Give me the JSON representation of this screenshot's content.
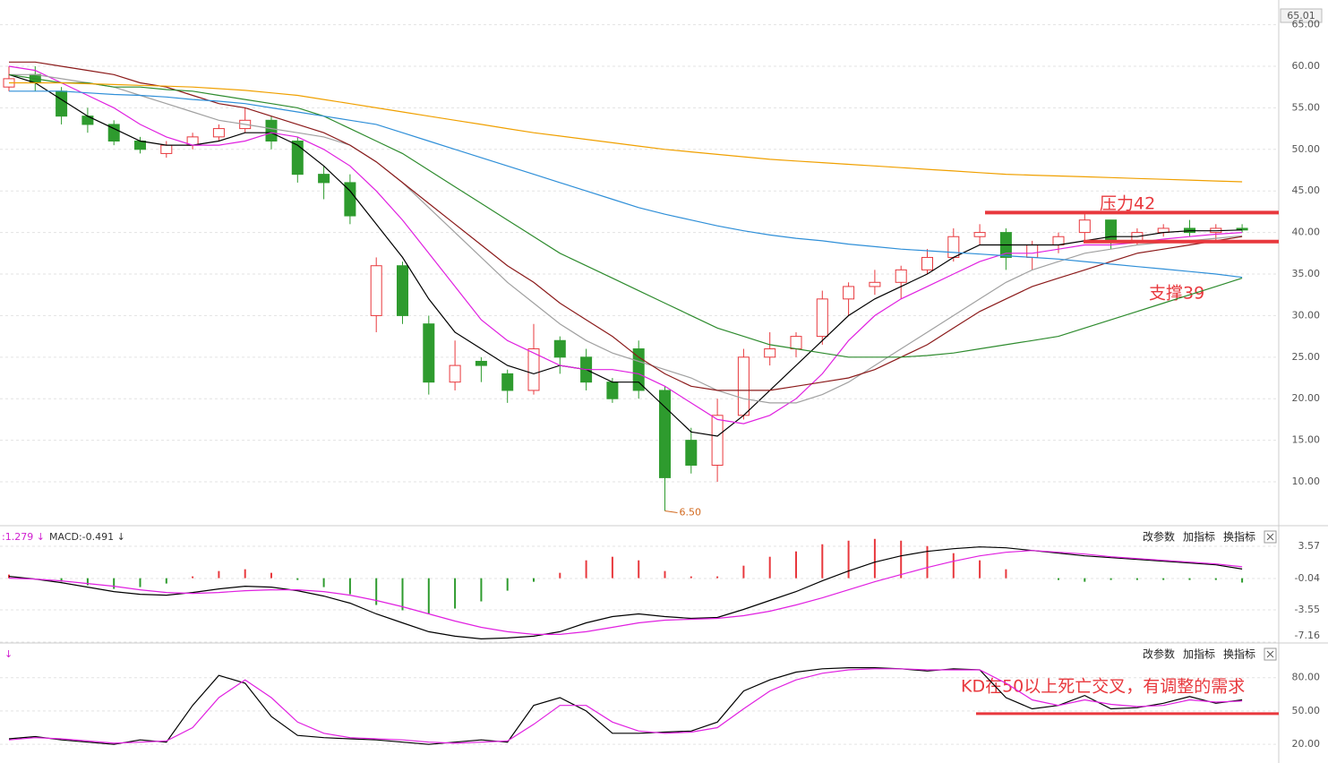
{
  "chart_data": [
    {
      "type": "candlestick",
      "open": [
        57.5,
        59,
        57,
        54,
        53,
        51,
        49.5,
        50.5,
        51.5,
        52.5,
        53.5,
        51,
        47,
        46,
        30,
        36,
        29,
        22,
        24.5,
        23,
        21,
        27,
        25,
        22,
        26,
        21,
        15,
        12,
        18,
        25,
        26,
        27.5,
        32,
        33.5,
        34,
        35.5,
        37,
        39.5,
        40,
        37,
        38.5,
        40,
        41.5,
        39,
        40,
        40.5,
        40,
        40.5
      ],
      "high": [
        60,
        60,
        57.5,
        55,
        53.5,
        51.5,
        51,
        52,
        53,
        55,
        54,
        51.5,
        48,
        47,
        37,
        36.5,
        30,
        27,
        25,
        23.5,
        29,
        27.5,
        26,
        22.5,
        27,
        21.5,
        16.5,
        20,
        26,
        28,
        28,
        33,
        34,
        35.5,
        36,
        38,
        40.5,
        41,
        40.5,
        39,
        40,
        42.5,
        41.5,
        40.5,
        41,
        41.5,
        41,
        41
      ],
      "low": [
        57,
        57,
        53,
        52,
        50.5,
        49.5,
        49,
        50,
        51,
        52,
        50,
        46,
        44,
        41,
        28,
        29,
        20.5,
        21,
        22,
        19.5,
        20.5,
        23,
        21,
        19.5,
        20,
        6.5,
        11,
        10,
        17.5,
        24,
        25,
        26.5,
        30,
        32.5,
        32,
        35,
        36.5,
        38.5,
        35.5,
        35.5,
        37.5,
        39,
        38,
        38.5,
        39.5,
        39.5,
        39,
        40
      ],
      "close": [
        58.5,
        58,
        54,
        53,
        51,
        50,
        50.5,
        51.5,
        52.5,
        53.5,
        51,
        47,
        46,
        42,
        36,
        30,
        22,
        24,
        24,
        21,
        26,
        25,
        22,
        20,
        21,
        10.5,
        12,
        18,
        25,
        26,
        27.5,
        32,
        33.5,
        34,
        35.5,
        37,
        39.5,
        40,
        37,
        38.5,
        39.5,
        41.5,
        39,
        40,
        40.5,
        40,
        40.5,
        40.3
      ],
      "up_color": "#e8383d",
      "down_color": "#2e9b2e",
      "series": [
        {
          "color": "#000000",
          "values": [
            59,
            58,
            56,
            54,
            52.5,
            51,
            50.5,
            50.5,
            51,
            52,
            52,
            50.5,
            48,
            45,
            41,
            37,
            32,
            28,
            26,
            24,
            23,
            24,
            23.5,
            22,
            22,
            19,
            16,
            15.5,
            18,
            21,
            24,
            27,
            30,
            32,
            33.5,
            35,
            37,
            38.5,
            38.5,
            38.5,
            38.5,
            39,
            39.5,
            39.5,
            40,
            40.2,
            40.2,
            40.3
          ]
        },
        {
          "color": "#e020e0",
          "values": [
            60,
            59.5,
            58,
            56.5,
            55,
            53,
            51.5,
            50.5,
            50.5,
            51,
            52,
            51.5,
            50,
            48,
            45,
            41.5,
            37.5,
            33.5,
            29.5,
            27,
            25.5,
            24,
            23.5,
            23.5,
            23,
            21.5,
            19.5,
            17.5,
            17,
            18,
            20,
            23,
            27,
            30,
            32,
            33.5,
            35,
            36.5,
            37.5,
            37.5,
            38,
            38.5,
            38.5,
            38.8,
            39.2,
            39.5,
            39.8,
            40
          ]
        },
        {
          "color": "#a0a0a0",
          "values": [
            59,
            59,
            58.5,
            58,
            57.5,
            56.5,
            55.5,
            54.5,
            53.5,
            53,
            52.5,
            52,
            51.5,
            50.5,
            48.5,
            46,
            43,
            40,
            37,
            34,
            31.5,
            29,
            27,
            25.5,
            24.5,
            23.5,
            22.5,
            21,
            20,
            19.5,
            19.5,
            20.5,
            22,
            24,
            26,
            28,
            30,
            32,
            34,
            35.5,
            36.5,
            37.5,
            38,
            38.5,
            38.8,
            39,
            39.3,
            39.6
          ]
        },
        {
          "color": "#8b1a1a",
          "values": [
            60.5,
            60.5,
            60,
            59.5,
            59,
            58,
            57.5,
            56.5,
            55.5,
            55,
            54,
            53,
            52,
            50.5,
            48.5,
            46,
            43.5,
            41,
            38.5,
            36,
            34,
            31.5,
            29.5,
            27.5,
            25,
            23,
            21.5,
            21,
            21,
            21,
            21.5,
            22,
            22.5,
            23.5,
            25,
            26.5,
            28.5,
            30.5,
            32,
            33.5,
            34.5,
            35.5,
            36.5,
            37.5,
            38,
            38.5,
            39,
            39.5
          ]
        },
        {
          "color": "#2e8b2e",
          "values": [
            59,
            58.5,
            58,
            58,
            57.5,
            57.5,
            57.2,
            57,
            56.5,
            56,
            55.5,
            55,
            54,
            52.5,
            51,
            49.5,
            47.5,
            45.5,
            43.5,
            41.5,
            39.5,
            37.5,
            36,
            34.5,
            33,
            31.5,
            30,
            28.5,
            27.5,
            26.5,
            26,
            25.5,
            25,
            25,
            25,
            25.2,
            25.5,
            26,
            26.5,
            27,
            27.5,
            28.5,
            29.5,
            30.5,
            31.5,
            32.5,
            33.5,
            34.5
          ]
        },
        {
          "color": "#2f8fd8",
          "values": [
            57,
            57,
            57,
            56.8,
            56.6,
            56.5,
            56.3,
            56,
            55.8,
            55.5,
            55,
            54.5,
            54,
            53.5,
            53,
            52,
            51,
            50,
            49,
            48,
            47,
            46,
            45,
            44,
            43,
            42.2,
            41.5,
            40.8,
            40.2,
            39.7,
            39.3,
            39,
            38.6,
            38.3,
            38,
            37.8,
            37.6,
            37.4,
            37.2,
            37,
            36.8,
            36.5,
            36.2,
            35.9,
            35.6,
            35.3,
            35,
            34.6
          ]
        },
        {
          "color": "#f0a000",
          "values": [
            58,
            58,
            58,
            57.9,
            57.8,
            57.7,
            57.6,
            57.5,
            57.3,
            57.1,
            56.8,
            56.5,
            56,
            55.5,
            55,
            54.5,
            54,
            53.5,
            53,
            52.5,
            52,
            51.6,
            51.2,
            50.8,
            50.4,
            50,
            49.7,
            49.4,
            49.1,
            48.8,
            48.6,
            48.4,
            48.2,
            48,
            47.8,
            47.6,
            47.4,
            47.2,
            47,
            46.9,
            46.8,
            46.7,
            46.6,
            46.5,
            46.4,
            46.3,
            46.2,
            46.1
          ]
        }
      ],
      "ylim": [
        4.94,
        67.97
      ],
      "yticks": [
        {
          "value": 10,
          "label": "10.00"
        },
        {
          "value": 15,
          "label": "15.00"
        },
        {
          "value": 20,
          "label": "20.00"
        },
        {
          "value": 25,
          "label": "25.00"
        },
        {
          "value": 30,
          "label": "30.00"
        },
        {
          "value": 35,
          "label": "35.00"
        },
        {
          "value": 40,
          "label": "40.00"
        },
        {
          "value": 45,
          "label": "45.00"
        },
        {
          "value": 50,
          "label": "50.00"
        },
        {
          "value": 55,
          "label": "55.00"
        },
        {
          "value": 60,
          "label": "60.00"
        },
        {
          "value": 65,
          "label": "65.00"
        }
      ],
      "grid": true,
      "cursor_label": "65.01",
      "low_label": "6.50",
      "reference_lines": [
        {
          "value": 42.4,
          "color": "#e8383d"
        },
        {
          "value": 38.9,
          "color": "#e8383d"
        }
      ],
      "annotations": [
        "压力42",
        "支撑39"
      ]
    },
    {
      "type": "macd",
      "header": [
        ":1.279 ↓",
        "MACD:-0.491 ↓"
      ],
      "toolbar": [
        "改参数",
        "加指标",
        "换指标"
      ],
      "series": [
        {
          "color": "#000000",
          "values": [
            0.2,
            -0.1,
            -0.5,
            -1,
            -1.5,
            -1.8,
            -1.9,
            -1.6,
            -1.2,
            -0.9,
            -1.0,
            -1.4,
            -2,
            -2.8,
            -4,
            -5,
            -6,
            -6.5,
            -6.8,
            -6.7,
            -6.5,
            -6,
            -5,
            -4.3,
            -4,
            -4.3,
            -4.5,
            -4.4,
            -3.5,
            -2.5,
            -1.5,
            -0.3,
            0.8,
            1.8,
            2.5,
            3,
            3.3,
            3.5,
            3.4,
            3.1,
            2.8,
            2.5,
            2.3,
            2.1,
            1.9,
            1.7,
            1.5,
            1.03
          ]
        },
        {
          "color": "#e020e0",
          "values": [
            0,
            -0.1,
            -0.3,
            -0.6,
            -0.9,
            -1.3,
            -1.6,
            -1.7,
            -1.6,
            -1.4,
            -1.3,
            -1.3,
            -1.5,
            -1.9,
            -2.5,
            -3.2,
            -4,
            -4.8,
            -5.5,
            -6,
            -6.3,
            -6.3,
            -6,
            -5.5,
            -5,
            -4.7,
            -4.6,
            -4.5,
            -4.2,
            -3.7,
            -3,
            -2.2,
            -1.3,
            -0.4,
            0.4,
            1.2,
            1.9,
            2.5,
            2.9,
            3.1,
            2.9,
            2.7,
            2.4,
            2.2,
            2,
            1.8,
            1.6,
            1.279
          ]
        }
      ],
      "histogram": [
        0.4,
        0,
        -0.4,
        -0.8,
        -1.2,
        -1.0,
        -0.6,
        0.2,
        0.8,
        1.0,
        0.6,
        -0.2,
        -1.0,
        -1.8,
        -3.0,
        -3.6,
        -4.0,
        -3.4,
        -2.6,
        -1.4,
        -0.4,
        0.6,
        2.0,
        2.4,
        2.0,
        0.8,
        0.2,
        0.2,
        1.4,
        2.4,
        3.0,
        3.8,
        4.2,
        4.4,
        4.2,
        3.6,
        2.8,
        2.0,
        1.0,
        0,
        -0.2,
        -0.4,
        -0.2,
        -0.2,
        -0.2,
        -0.2,
        -0.2,
        -0.491
      ],
      "up_color": "#e8383d",
      "down_color": "#2e9b2e",
      "ylim": [
        -7.16,
        5.78
      ],
      "yticks": [
        3.57,
        -0.04,
        -3.55,
        -7.16
      ],
      "grid": true
    },
    {
      "type": "kd",
      "header": [
        "↓"
      ],
      "toolbar": [
        "改参数",
        "加指标",
        "换指标"
      ],
      "series": [
        {
          "color": "#000000",
          "values": [
            25,
            27,
            24,
            22,
            20,
            24,
            22,
            55,
            82,
            75,
            45,
            28,
            26,
            25,
            24,
            22,
            20,
            22,
            24,
            22,
            55,
            62,
            50,
            30,
            30,
            31,
            32,
            40,
            68,
            78,
            85,
            88,
            89,
            89,
            88,
            86,
            88,
            87,
            62,
            52,
            55,
            64,
            52,
            53,
            57,
            63,
            57,
            60
          ]
        },
        {
          "color": "#e020e0",
          "values": [
            24,
            26,
            25,
            23,
            21,
            22,
            23,
            35,
            62,
            78,
            62,
            40,
            30,
            26,
            25,
            24,
            22,
            21,
            22,
            23,
            38,
            55,
            55,
            40,
            32,
            30,
            31,
            35,
            52,
            68,
            78,
            84,
            87,
            88,
            88,
            87,
            87,
            87,
            75,
            60,
            55,
            60,
            56,
            54,
            55,
            60,
            58,
            59
          ]
        }
      ],
      "ylim": [
        3.2,
        110.4
      ],
      "yticks": [
        {
          "value": 80,
          "label": "80.00"
        },
        {
          "value": 50,
          "label": "50.00"
        },
        {
          "value": 20,
          "label": "20.00"
        }
      ],
      "grid": true,
      "reference_lines": [
        {
          "value": 47.6,
          "color": "#e8383d"
        }
      ],
      "annotations": [
        "KD在50以上死亡交叉，有调整的需求"
      ]
    }
  ]
}
